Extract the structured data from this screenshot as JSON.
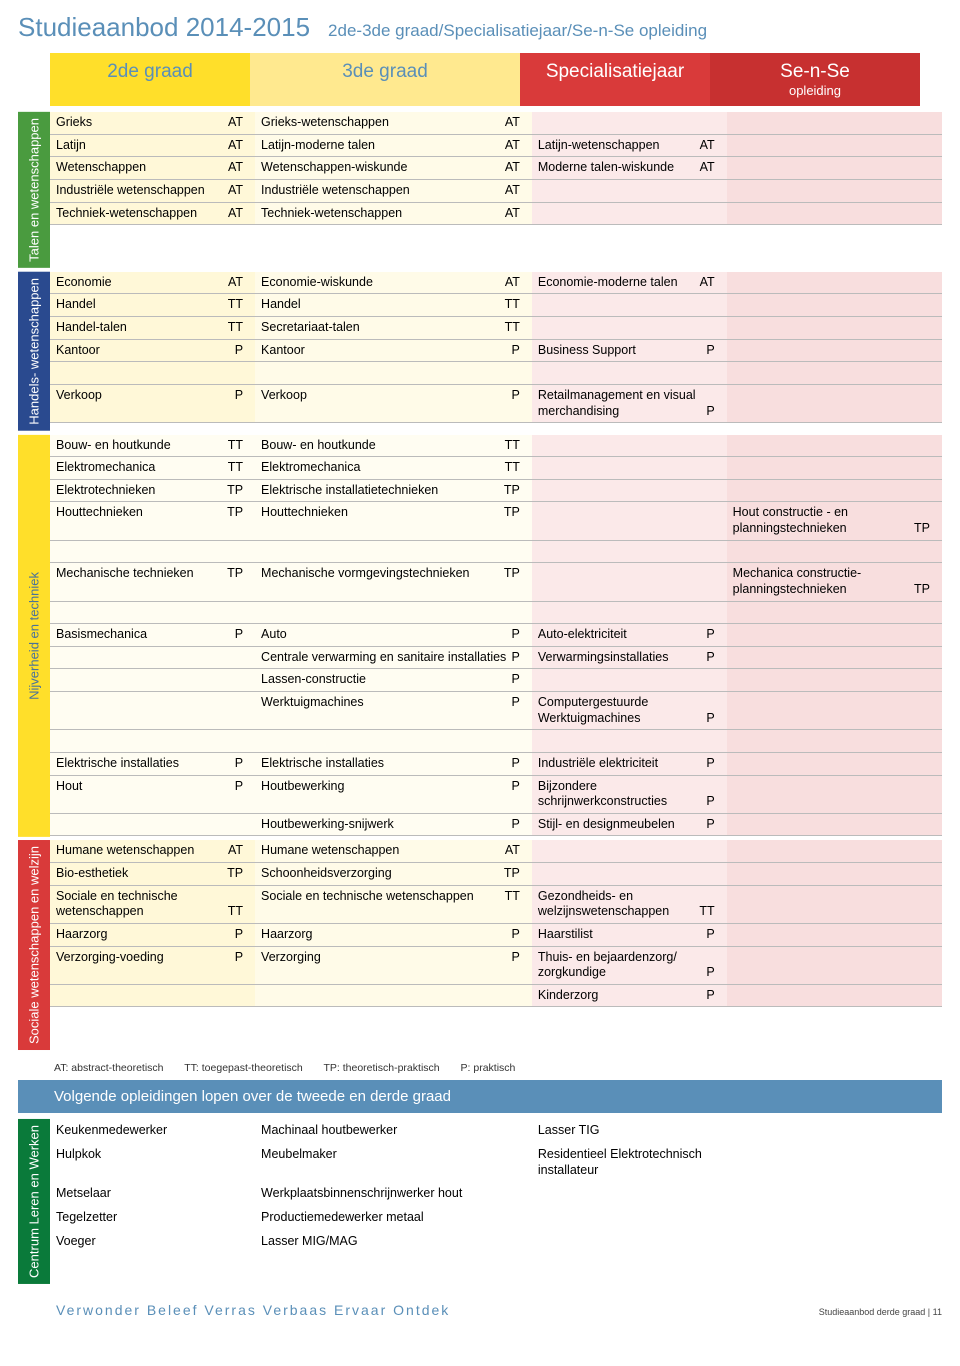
{
  "colors": {
    "accent_blue": "#5a8fb8",
    "yellow_strong": "#ffdf2a",
    "yellow_light": "#ffe98f",
    "red_strong": "#d93a3a",
    "red_dark": "#c73030",
    "red_bg1": "#fbe9e9",
    "red_bg2": "#f8dede",
    "tab_green": "#4a9b3f",
    "tab_blue": "#2a4a8f",
    "tab_red": "#d93a3a",
    "tab_darkgreen": "#0a7a3a"
  },
  "title": "Studieaanbod 2014-2015",
  "subtitle": "2de-3de graad/Specialisatiejaar/Se-n-Se opleiding",
  "headers": {
    "c1": "2de graad",
    "c2": "3de graad",
    "c3": "Specialisatiejaar",
    "c4a": "Se-n-Se",
    "c4b": "opleiding"
  },
  "sections": {
    "talen": {
      "label": "Talen en\nwetenschappen",
      "rows": [
        {
          "c1": "Grieks",
          "t1": "AT",
          "c2": "Grieks-wetenschappen",
          "t2": "AT",
          "c3": "",
          "t3": "",
          "c4": "",
          "t4": ""
        },
        {
          "c1": "Latijn",
          "t1": "AT",
          "c2": "Latijn-moderne talen",
          "t2": "AT",
          "c3": "Latijn-wetenschappen",
          "t3": "AT",
          "c4": "",
          "t4": ""
        },
        {
          "c1": "Wetenschappen",
          "t1": "AT",
          "c2": "Wetenschappen-wiskunde",
          "t2": "AT",
          "c3": "Moderne talen-wiskunde",
          "t3": "AT",
          "c4": "",
          "t4": ""
        },
        {
          "c1": "Industriële wetenschappen",
          "t1": "AT",
          "c2": "Industriële wetenschappen",
          "t2": "AT",
          "c3": "",
          "t3": "",
          "c4": "",
          "t4": ""
        },
        {
          "c1": "Techniek-wetenschappen",
          "t1": "AT",
          "c2": "Techniek-wetenschappen",
          "t2": "AT",
          "c3": "",
          "t3": "",
          "c4": "",
          "t4": ""
        }
      ]
    },
    "handel": {
      "label": "Handels-\nwetenschappen",
      "rows": [
        {
          "c1": "Economie",
          "t1": "AT",
          "c2": "Economie-wiskunde",
          "t2": "AT",
          "c3": "Economie-moderne talen",
          "t3": "AT",
          "c4": "",
          "t4": ""
        },
        {
          "c1": "Handel",
          "t1": "TT",
          "c2": "Handel",
          "t2": "TT",
          "c3": "",
          "t3": "",
          "c4": "",
          "t4": ""
        },
        {
          "c1": "Handel-talen",
          "t1": "TT",
          "c2": "Secretariaat-talen",
          "t2": "TT",
          "c3": "",
          "t3": "",
          "c4": "",
          "t4": ""
        },
        {
          "c1": "Kantoor",
          "t1": "P",
          "c2": "Kantoor",
          "t2": "P",
          "c3": "Business Support",
          "t3": "P",
          "c4": "",
          "t4": ""
        },
        {
          "c1": "",
          "t1": "",
          "c2": "",
          "t2": "",
          "c3": "",
          "t3": "",
          "c4": "",
          "t4": ""
        },
        {
          "c1": "Verkoop",
          "t1": "P",
          "c2": "Verkoop",
          "t2": "P",
          "c3": "Retailmanagement en visual merchandising",
          "t3": "P",
          "c4": "",
          "t4": ""
        }
      ]
    },
    "nijverheid": {
      "label": "Nijverheid en techniek",
      "rows": [
        {
          "c1": "Bouw- en houtkunde",
          "t1": "TT",
          "c2": "Bouw- en houtkunde",
          "t2": "TT",
          "c3": "",
          "t3": "",
          "c4": "",
          "t4": ""
        },
        {
          "c1": "Elektromechanica",
          "t1": "TT",
          "c2": "Elektromechanica",
          "t2": "TT",
          "c3": "",
          "t3": "",
          "c4": "",
          "t4": ""
        },
        {
          "c1": "Elektrotechnieken",
          "t1": "TP",
          "c2": "Elektrische installatietechnieken",
          "t2": "TP",
          "c3": "",
          "t3": "",
          "c4": "",
          "t4": ""
        },
        {
          "c1": "Houttechnieken",
          "t1": "TP",
          "c2": "Houttechnieken",
          "t2": "TP",
          "c3": "",
          "t3": "",
          "c4": "Hout constructie - en planningstechnieken",
          "t4": "TP"
        },
        {
          "c1": "",
          "t1": "",
          "c2": "",
          "t2": "",
          "c3": "",
          "t3": "",
          "c4": "",
          "t4": ""
        },
        {
          "c1": "Mechanische technieken",
          "t1": "TP",
          "c2": "Mechanische vormgevingstechnieken",
          "t2": "TP",
          "c3": "",
          "t3": "",
          "c4": "Mechanica constructie-planningstechnieken",
          "t4": "TP"
        },
        {
          "c1": "",
          "t1": "",
          "c2": "",
          "t2": "",
          "c3": "",
          "t3": "",
          "c4": "",
          "t4": ""
        },
        {
          "c1": "Basismechanica",
          "t1": "P",
          "c2": "Auto",
          "t2": "P",
          "c3": "Auto-elektriciteit",
          "t3": "P",
          "c4": "",
          "t4": ""
        },
        {
          "c1": "",
          "t1": "",
          "c2": "Centrale verwarming en sanitaire installaties",
          "t2": "P",
          "c3": "Verwarmingsinstallaties",
          "t3": "P",
          "c4": "",
          "t4": ""
        },
        {
          "c1": "",
          "t1": "",
          "c2": "Lassen-constructie",
          "t2": "P",
          "c3": "",
          "t3": "",
          "c4": "",
          "t4": ""
        },
        {
          "c1": "",
          "t1": "",
          "c2": "Werktuigmachines",
          "t2": "P",
          "c3": "Computergestuurde Werktuigmachines",
          "t3": "P",
          "c4": "",
          "t4": ""
        },
        {
          "c1": "",
          "t1": "",
          "c2": "",
          "t2": "",
          "c3": "",
          "t3": "",
          "c4": "",
          "t4": ""
        },
        {
          "c1": "Elektrische installaties",
          "t1": "P",
          "c2": "Elektrische installaties",
          "t2": "P",
          "c3": "Industriële elektriciteit",
          "t3": "P",
          "c4": "",
          "t4": ""
        },
        {
          "c1": "Hout",
          "t1": "P",
          "c2": "Houtbewerking",
          "t2": "P",
          "c3": "Bijzondere schrijnwerkconstructies",
          "t3": "P",
          "c4": "",
          "t4": ""
        },
        {
          "c1": "",
          "t1": "",
          "c2": "Houtbewerking-snijwerk",
          "t2": "P",
          "c3": "Stijl- en designmeubelen",
          "t3": "P",
          "c4": "",
          "t4": ""
        }
      ]
    },
    "sociale": {
      "label": "Sociale\nwetenschappen\nen welzijn",
      "rows": [
        {
          "c1": "Humane wetenschappen",
          "t1": "AT",
          "c2": "Humane wetenschappen",
          "t2": "AT",
          "c3": "",
          "t3": "",
          "c4": "",
          "t4": ""
        },
        {
          "c1": "Bio-esthetiek",
          "t1": "TP",
          "c2": "Schoonheidsverzorging",
          "t2": "TP",
          "c3": "",
          "t3": "",
          "c4": "",
          "t4": ""
        },
        {
          "c1": "Sociale en technische wetenschappen",
          "t1": "TT",
          "c2": "Sociale en technische wetenschappen",
          "t2": "TT",
          "c3": "Gezondheids- en welzijnswetenschappen",
          "t3": "TT",
          "c4": "",
          "t4": ""
        },
        {
          "c1": "Haarzorg",
          "t1": "P",
          "c2": "Haarzorg",
          "t2": "P",
          "c3": "Haarstilist",
          "t3": "P",
          "c4": "",
          "t4": ""
        },
        {
          "c1": "Verzorging-voeding",
          "t1": "P",
          "c2": "Verzorging",
          "t2": "P",
          "c3": "Thuis- en bejaardenzorg/ zorgkundige",
          "t3": "P",
          "c4": "",
          "t4": ""
        },
        {
          "c1": "",
          "t1": "",
          "c2": "",
          "t2": "",
          "c3": "Kinderzorg",
          "t3": "P",
          "c4": "",
          "t4": ""
        }
      ]
    },
    "clw": {
      "label": "Centrum Leren\nen Werken",
      "rows": [
        {
          "c1": "Keukenmedewerker",
          "c2": "Machinaal houtbewerker",
          "c3": "Lasser TIG"
        },
        {
          "c1": "Hulpkok",
          "c2": "Meubelmaker",
          "c3": "Residentieel Elektrotechnisch installateur"
        },
        {
          "c1": "Metselaar",
          "c2": "Werkplaatsbinnenschrijnwerker hout",
          "c3": ""
        },
        {
          "c1": "Tegelzetter",
          "c2": "Productiemedewerker metaal",
          "c3": ""
        },
        {
          "c1": "Voeger",
          "c2": "Lasser MIG/MAG",
          "c3": ""
        }
      ]
    }
  },
  "legend": {
    "at": "AT: abstract-theoretisch",
    "tt": "TT: toegepast-theoretisch",
    "tp": "TP: theoretisch-praktisch",
    "p": "P: praktisch"
  },
  "bluebar": "Volgende opleidingen lopen over de tweede en derde graad",
  "tagline": "Verwonder Beleef Verras Verbaas Ervaar Ontdek",
  "pagenum": "Studieaanbod derde graad | 11"
}
